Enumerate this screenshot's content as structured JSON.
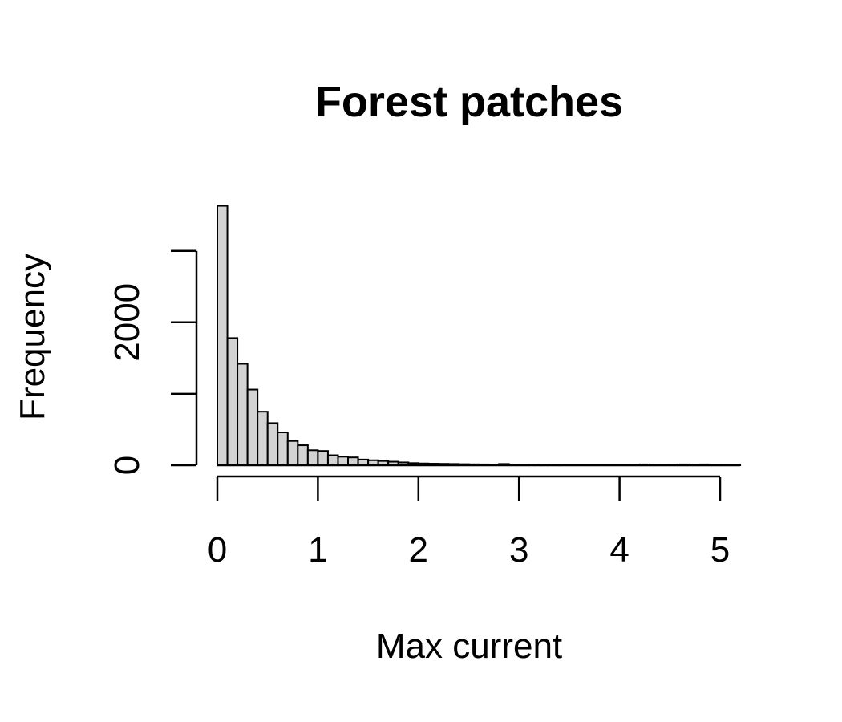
{
  "chart_data": {
    "type": "bar",
    "title": "Forest patches",
    "xlabel": "Max current",
    "ylabel": "Frequency",
    "x_ticks": [
      "0",
      "1",
      "2",
      "3",
      "4",
      "5"
    ],
    "y_ticks": [
      "0",
      "2000"
    ],
    "xlim": [
      0,
      5.2
    ],
    "ylim": [
      0,
      3650
    ],
    "bin_width": 0.1,
    "bin_starts": [
      0.0,
      0.1,
      0.2,
      0.3,
      0.4,
      0.5,
      0.6,
      0.7,
      0.8,
      0.9,
      1.0,
      1.1,
      1.2,
      1.3,
      1.4,
      1.5,
      1.6,
      1.7,
      1.8,
      1.9,
      2.0,
      2.1,
      2.2,
      2.3,
      2.4,
      2.5,
      2.6,
      2.7,
      2.8,
      2.9,
      3.0,
      3.1,
      3.2,
      3.3,
      3.4,
      3.5,
      3.6,
      3.7,
      3.8,
      3.9,
      4.0,
      4.1,
      4.2,
      4.3,
      4.4,
      4.5,
      4.6,
      4.7,
      4.8,
      4.9,
      5.0,
      5.1
    ],
    "values": [
      3630,
      1780,
      1420,
      1060,
      750,
      590,
      460,
      340,
      280,
      210,
      200,
      140,
      120,
      110,
      80,
      70,
      60,
      50,
      40,
      30,
      25,
      22,
      20,
      18,
      15,
      13,
      12,
      10,
      18,
      10,
      9,
      8,
      8,
      7,
      6,
      6,
      6,
      5,
      5,
      5,
      5,
      4,
      12,
      4,
      4,
      3,
      12,
      3,
      12,
      2,
      3,
      2
    ]
  }
}
